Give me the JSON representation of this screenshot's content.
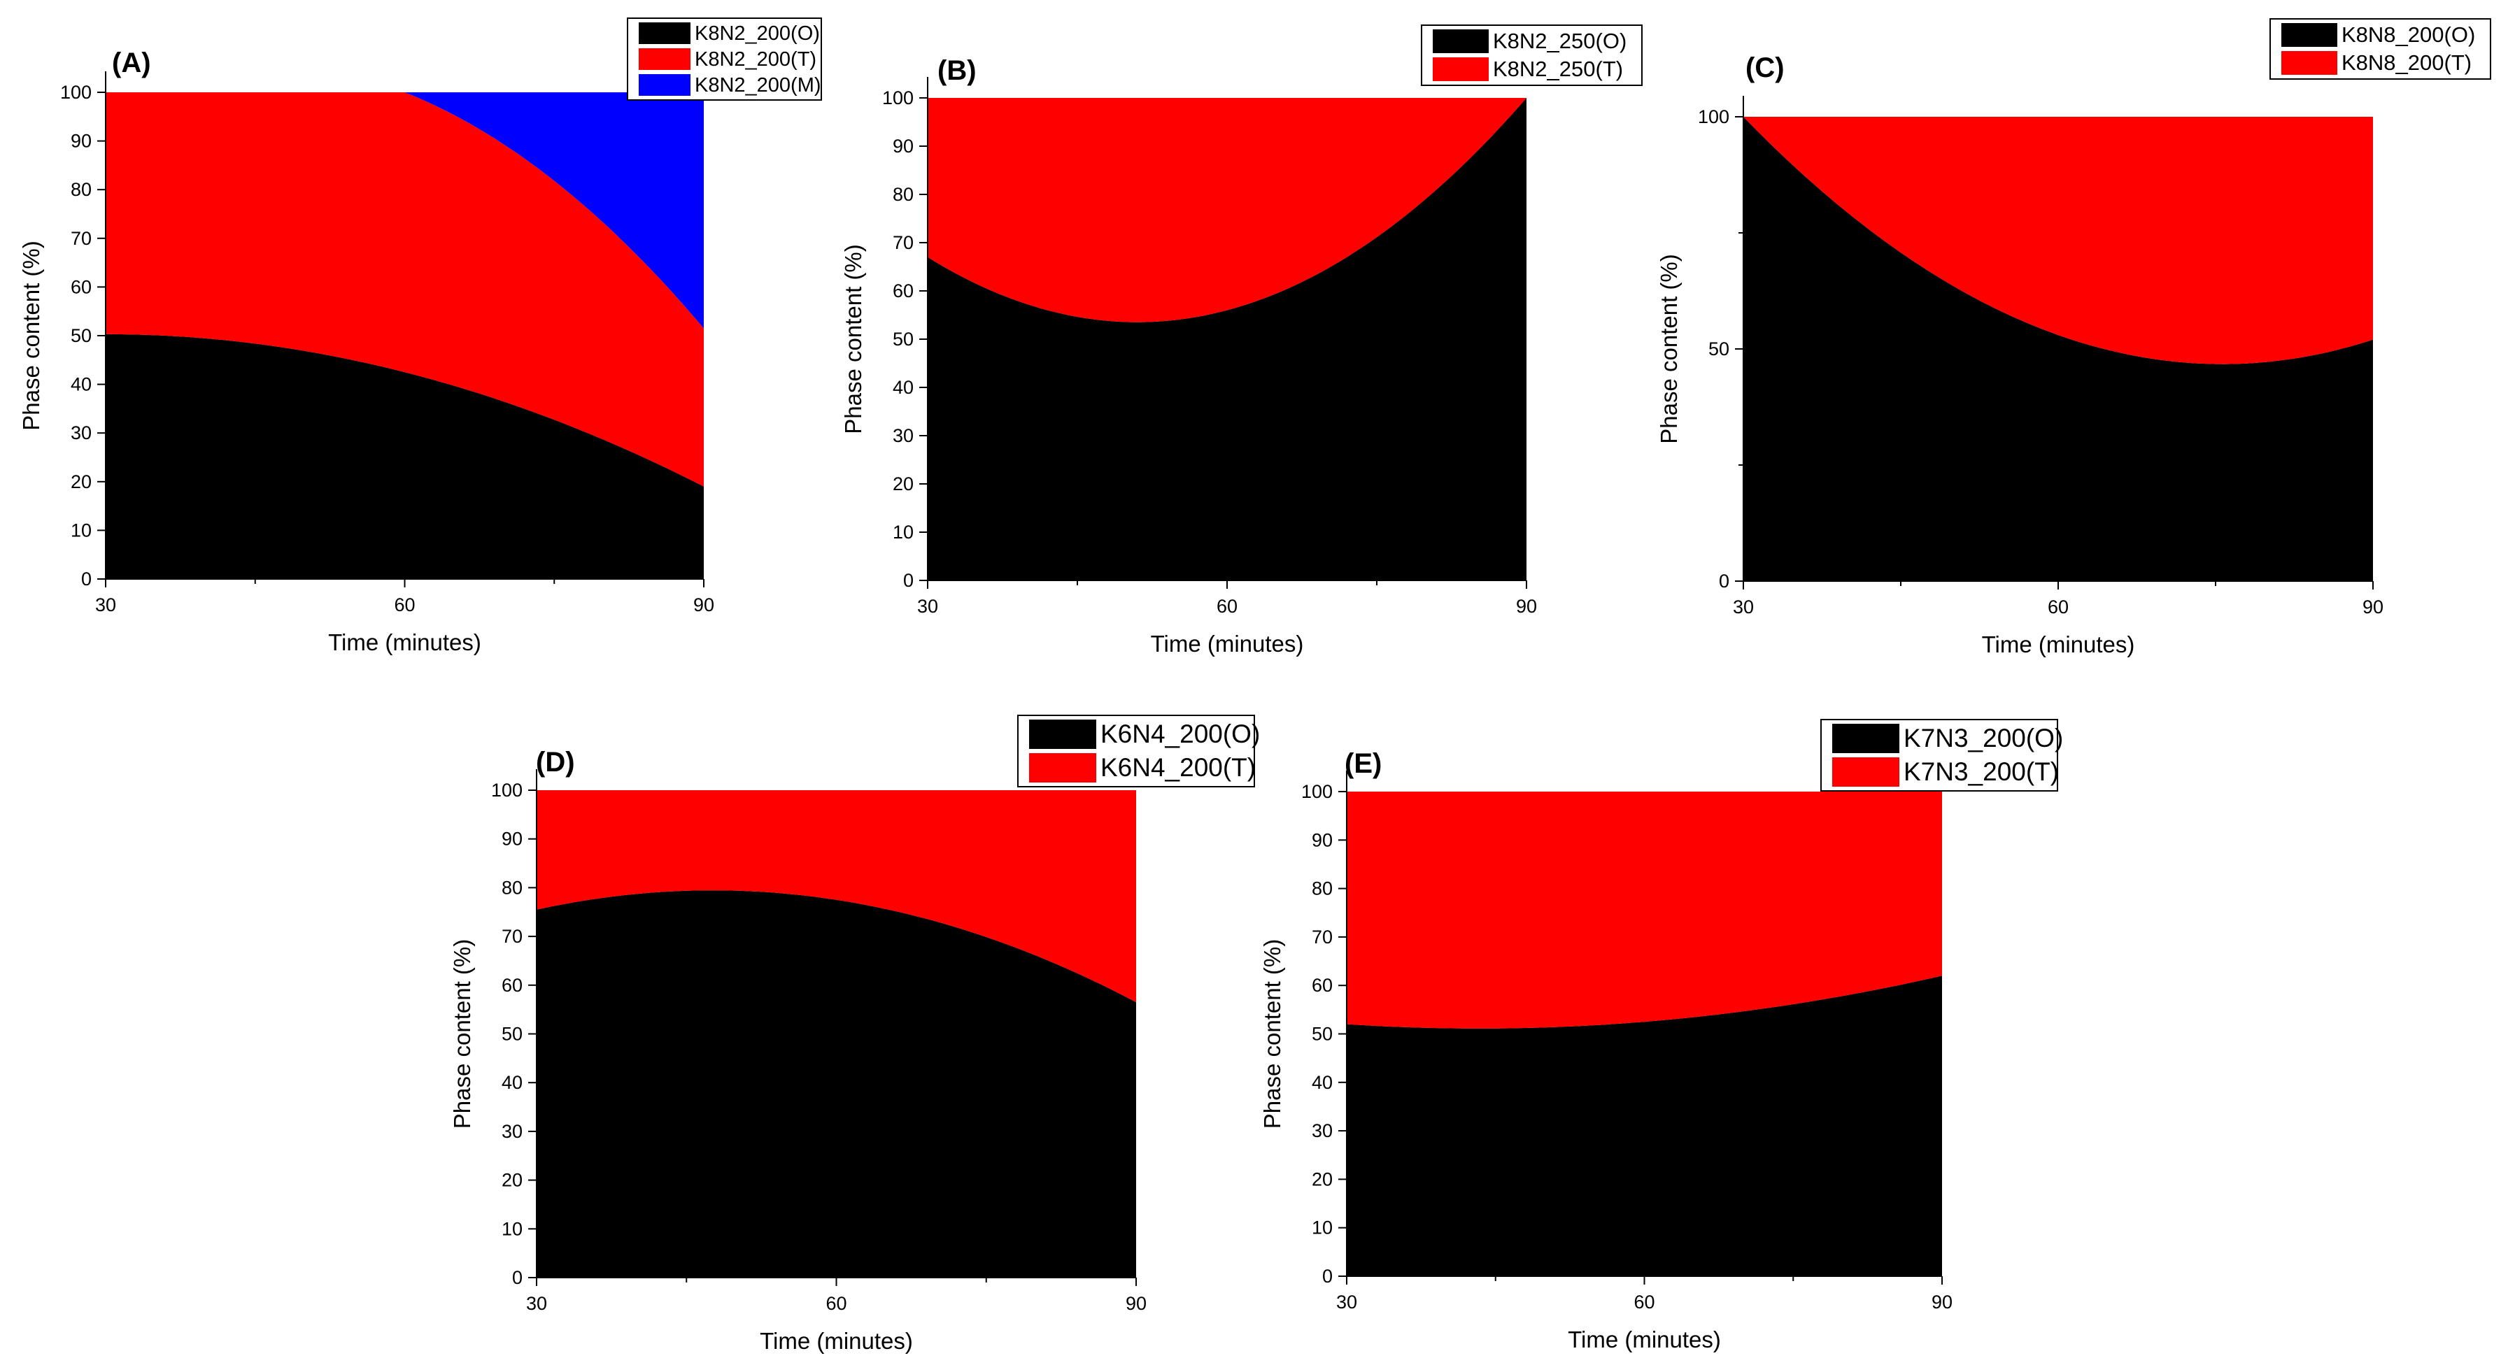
{
  "figure": {
    "colors": {
      "O": "#000000",
      "T": "#ff0000",
      "M": "#0000ff"
    }
  },
  "chart_data": [
    {
      "id": "A",
      "type": "area",
      "stacked": true,
      "panel_label": "(A)",
      "xlabel": "Time (minutes)",
      "ylabel": "Phase content (%)",
      "xlim": [
        30,
        90
      ],
      "ylim": [
        0,
        100
      ],
      "xticks": [
        30,
        60,
        90
      ],
      "yticks": [
        0,
        10,
        20,
        30,
        40,
        50,
        60,
        70,
        80,
        90,
        100
      ],
      "x": [
        30,
        60,
        90
      ],
      "series": [
        {
          "name": "K8N2_200(O)",
          "color": "#000000",
          "values": [
            50.3,
            42.5,
            19.0
          ]
        },
        {
          "name": "K8N2_200(T)",
          "color": "#ff0000",
          "values": [
            49.7,
            57.5,
            32.5
          ]
        },
        {
          "name": "K8N2_200(M)",
          "color": "#0000ff",
          "values": [
            0.0,
            0.0,
            48.5
          ]
        }
      ],
      "legend": "top-right"
    },
    {
      "id": "B",
      "type": "area",
      "stacked": true,
      "panel_label": "(B)",
      "xlabel": "Time (minutes)",
      "ylabel": "Phase content (%)",
      "xlim": [
        30,
        90
      ],
      "ylim": [
        0,
        100
      ],
      "xticks": [
        30,
        60,
        90
      ],
      "yticks": [
        0,
        10,
        20,
        30,
        40,
        50,
        60,
        70,
        80,
        90,
        100
      ],
      "x": [
        30,
        60,
        90
      ],
      "series": [
        {
          "name": "K8N2_250(O)",
          "color": "#000000",
          "values": [
            67.0,
            56.0,
            100.0
          ]
        },
        {
          "name": "K8N2_250(T)",
          "color": "#ff0000",
          "values": [
            33.0,
            44.0,
            0.0
          ]
        }
      ],
      "legend": "top-right"
    },
    {
      "id": "C",
      "type": "area",
      "stacked": true,
      "panel_label": "(C)",
      "xlabel": "Time (minutes)",
      "ylabel": "Phase content (%)",
      "xlim": [
        30,
        90
      ],
      "ylim": [
        0,
        100
      ],
      "xticks": [
        30,
        60,
        90
      ],
      "yticks": [
        0,
        50,
        100
      ],
      "x": [
        30,
        60,
        90
      ],
      "series": [
        {
          "name": "K8N8_200(O)",
          "color": "#000000",
          "values": [
            100.0,
            53.0,
            52.0
          ]
        },
        {
          "name": "K8N8_200(T)",
          "color": "#ff0000",
          "values": [
            0.0,
            47.0,
            48.0
          ]
        }
      ],
      "legend": "top-right"
    },
    {
      "id": "D",
      "type": "area",
      "stacked": true,
      "panel_label": "(D)",
      "xlabel": "Time (minutes)",
      "ylabel": "Phase content (%)",
      "xlim": [
        30,
        90
      ],
      "ylim": [
        0,
        100
      ],
      "xticks": [
        30,
        60,
        90
      ],
      "yticks": [
        0,
        10,
        20,
        30,
        40,
        50,
        60,
        70,
        80,
        90,
        100
      ],
      "x": [
        30,
        60,
        90
      ],
      "series": [
        {
          "name": "K6N4_200(O)",
          "color": "#000000",
          "values": [
            75.5,
            77.5,
            56.5
          ]
        },
        {
          "name": "K6N4_200(T)",
          "color": "#ff0000",
          "values": [
            24.5,
            22.5,
            43.5
          ]
        }
      ],
      "legend": "top-right"
    },
    {
      "id": "E",
      "type": "area",
      "stacked": true,
      "panel_label": "(E)",
      "xlabel": "Time (minutes)",
      "ylabel": "Phase content (%)",
      "xlim": [
        30,
        90
      ],
      "ylim": [
        0,
        100
      ],
      "xticks": [
        30,
        60,
        90
      ],
      "yticks": [
        0,
        10,
        20,
        30,
        40,
        50,
        60,
        70,
        80,
        90,
        100
      ],
      "x": [
        30,
        60,
        90
      ],
      "series": [
        {
          "name": "K7N3_200(O)",
          "color": "#000000",
          "values": [
            52.0,
            52.5,
            62.0
          ]
        },
        {
          "name": "K7N3_200(T)",
          "color": "#ff0000",
          "values": [
            48.0,
            47.5,
            38.0
          ]
        }
      ],
      "legend": "top-right"
    }
  ]
}
